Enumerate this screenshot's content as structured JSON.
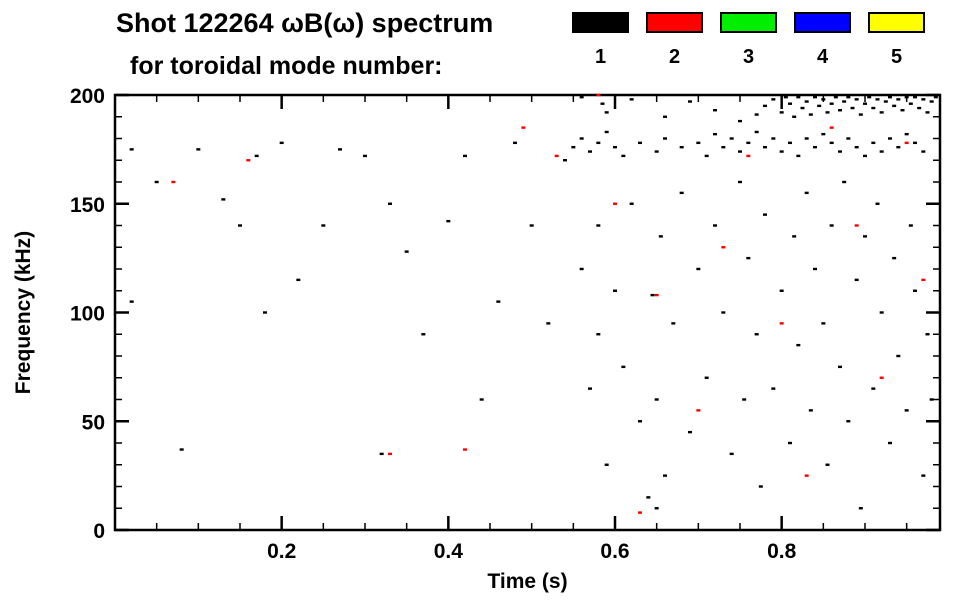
{
  "header": {
    "title_line1": "Shot 122264 ωB(ω) spectrum",
    "title_line2": "for toroidal mode number:"
  },
  "legend": {
    "items": [
      {
        "label": "1",
        "color": "#000000"
      },
      {
        "label": "2",
        "color": "#ff0000"
      },
      {
        "label": "3",
        "color": "#00ee00"
      },
      {
        "label": "4",
        "color": "#0000ff"
      },
      {
        "label": "5",
        "color": "#ffff00"
      }
    ]
  },
  "chart_data": {
    "type": "scatter",
    "title": "Shot 122264 ωB(ω) spectrum for toroidal mode number",
    "xlabel": "Time (s)",
    "ylabel": "Frequency (kHz)",
    "xlim": [
      0,
      0.99
    ],
    "ylim": [
      0,
      200
    ],
    "xticks": [
      0.2,
      0.4,
      0.6,
      0.8
    ],
    "xtick_labels": [
      "0.2",
      "0.4",
      "0.6",
      "0.8"
    ],
    "yticks": [
      0,
      50,
      100,
      150,
      200
    ],
    "ytick_labels": [
      "0",
      "50",
      "100",
      "150",
      "200"
    ],
    "x_minor_step": 0.05,
    "y_minor_step": 10,
    "grid": false,
    "legend_position": "top-right",
    "series": [
      {
        "name": "mode 1",
        "color": "#000000",
        "points": [
          [
            0.02,
            175
          ],
          [
            0.02,
            105
          ],
          [
            0.05,
            160
          ],
          [
            0.08,
            37
          ],
          [
            0.1,
            175
          ],
          [
            0.13,
            152
          ],
          [
            0.15,
            140
          ],
          [
            0.17,
            172
          ],
          [
            0.18,
            100
          ],
          [
            0.2,
            178
          ],
          [
            0.22,
            115
          ],
          [
            0.25,
            140
          ],
          [
            0.27,
            175
          ],
          [
            0.3,
            172
          ],
          [
            0.32,
            35
          ],
          [
            0.33,
            150
          ],
          [
            0.35,
            128
          ],
          [
            0.37,
            90
          ],
          [
            0.4,
            142
          ],
          [
            0.42,
            172
          ],
          [
            0.44,
            60
          ],
          [
            0.46,
            105
          ],
          [
            0.48,
            178
          ],
          [
            0.5,
            140
          ],
          [
            0.52,
            95
          ],
          [
            0.54,
            170
          ],
          [
            0.55,
            176
          ],
          [
            0.56,
            180
          ],
          [
            0.57,
            174
          ],
          [
            0.58,
            178
          ],
          [
            0.585,
            196
          ],
          [
            0.59,
            183
          ],
          [
            0.6,
            176
          ],
          [
            0.61,
            172
          ],
          [
            0.63,
            178
          ],
          [
            0.65,
            174
          ],
          [
            0.66,
            180
          ],
          [
            0.68,
            176
          ],
          [
            0.7,
            178
          ],
          [
            0.71,
            172
          ],
          [
            0.72,
            182
          ],
          [
            0.73,
            176
          ],
          [
            0.74,
            180
          ],
          [
            0.75,
            174
          ],
          [
            0.76,
            178
          ],
          [
            0.77,
            183
          ],
          [
            0.78,
            176
          ],
          [
            0.79,
            180
          ],
          [
            0.8,
            174
          ],
          [
            0.81,
            178
          ],
          [
            0.82,
            172
          ],
          [
            0.83,
            180
          ],
          [
            0.84,
            176
          ],
          [
            0.85,
            182
          ],
          [
            0.86,
            178
          ],
          [
            0.87,
            174
          ],
          [
            0.88,
            180
          ],
          [
            0.89,
            176
          ],
          [
            0.9,
            172
          ],
          [
            0.91,
            178
          ],
          [
            0.92,
            174
          ],
          [
            0.93,
            180
          ],
          [
            0.94,
            176
          ],
          [
            0.95,
            182
          ],
          [
            0.96,
            178
          ],
          [
            0.97,
            174
          ],
          [
            0.56,
            199
          ],
          [
            0.59,
            192
          ],
          [
            0.62,
            198
          ],
          [
            0.66,
            190
          ],
          [
            0.69,
            197
          ],
          [
            0.72,
            193
          ],
          [
            0.75,
            188
          ],
          [
            0.77,
            191
          ],
          [
            0.78,
            195
          ],
          [
            0.79,
            198
          ],
          [
            0.8,
            192
          ],
          [
            0.805,
            199
          ],
          [
            0.81,
            196
          ],
          [
            0.815,
            190
          ],
          [
            0.82,
            199
          ],
          [
            0.825,
            194
          ],
          [
            0.83,
            197
          ],
          [
            0.835,
            191
          ],
          [
            0.84,
            199
          ],
          [
            0.845,
            195
          ],
          [
            0.85,
            198
          ],
          [
            0.855,
            192
          ],
          [
            0.86,
            196
          ],
          [
            0.865,
            199
          ],
          [
            0.87,
            193
          ],
          [
            0.875,
            197
          ],
          [
            0.88,
            199
          ],
          [
            0.885,
            194
          ],
          [
            0.89,
            198
          ],
          [
            0.895,
            191
          ],
          [
            0.9,
            196
          ],
          [
            0.905,
            199
          ],
          [
            0.91,
            194
          ],
          [
            0.915,
            198
          ],
          [
            0.92,
            192
          ],
          [
            0.925,
            197
          ],
          [
            0.93,
            199
          ],
          [
            0.935,
            195
          ],
          [
            0.94,
            198
          ],
          [
            0.945,
            193
          ],
          [
            0.95,
            199
          ],
          [
            0.955,
            196
          ],
          [
            0.96,
            199
          ],
          [
            0.965,
            194
          ],
          [
            0.97,
            198
          ],
          [
            0.975,
            192
          ],
          [
            0.98,
            197
          ],
          [
            0.985,
            199
          ],
          [
            0.56,
            120
          ],
          [
            0.57,
            65
          ],
          [
            0.58,
            140
          ],
          [
            0.58,
            90
          ],
          [
            0.59,
            30
          ],
          [
            0.6,
            110
          ],
          [
            0.61,
            75
          ],
          [
            0.62,
            150
          ],
          [
            0.63,
            50
          ],
          [
            0.64,
            15
          ],
          [
            0.645,
            108
          ],
          [
            0.65,
            10
          ],
          [
            0.65,
            60
          ],
          [
            0.655,
            135
          ],
          [
            0.66,
            25
          ],
          [
            0.67,
            95
          ],
          [
            0.68,
            155
          ],
          [
            0.69,
            45
          ],
          [
            0.7,
            120
          ],
          [
            0.71,
            70
          ],
          [
            0.72,
            140
          ],
          [
            0.73,
            100
          ],
          [
            0.74,
            35
          ],
          [
            0.75,
            160
          ],
          [
            0.755,
            60
          ],
          [
            0.76,
            125
          ],
          [
            0.77,
            90
          ],
          [
            0.775,
            20
          ],
          [
            0.78,
            145
          ],
          [
            0.79,
            65
          ],
          [
            0.8,
            110
          ],
          [
            0.81,
            40
          ],
          [
            0.815,
            135
          ],
          [
            0.82,
            85
          ],
          [
            0.83,
            155
          ],
          [
            0.835,
            55
          ],
          [
            0.84,
            120
          ],
          [
            0.85,
            95
          ],
          [
            0.855,
            30
          ],
          [
            0.86,
            140
          ],
          [
            0.87,
            75
          ],
          [
            0.875,
            160
          ],
          [
            0.88,
            50
          ],
          [
            0.89,
            115
          ],
          [
            0.895,
            10
          ],
          [
            0.9,
            135
          ],
          [
            0.91,
            65
          ],
          [
            0.915,
            150
          ],
          [
            0.92,
            100
          ],
          [
            0.93,
            40
          ],
          [
            0.935,
            125
          ],
          [
            0.94,
            80
          ],
          [
            0.95,
            55
          ],
          [
            0.955,
            140
          ],
          [
            0.96,
            110
          ],
          [
            0.97,
            25
          ],
          [
            0.975,
            90
          ],
          [
            0.98,
            60
          ]
        ]
      },
      {
        "name": "mode 2",
        "color": "#ff0000",
        "points": [
          [
            0.07,
            160
          ],
          [
            0.16,
            170
          ],
          [
            0.33,
            35
          ],
          [
            0.42,
            37
          ],
          [
            0.49,
            185
          ],
          [
            0.53,
            172
          ],
          [
            0.58,
            200
          ],
          [
            0.6,
            150
          ],
          [
            0.63,
            8
          ],
          [
            0.65,
            108
          ],
          [
            0.7,
            55
          ],
          [
            0.73,
            130
          ],
          [
            0.76,
            172
          ],
          [
            0.8,
            95
          ],
          [
            0.83,
            25
          ],
          [
            0.86,
            185
          ],
          [
            0.89,
            140
          ],
          [
            0.92,
            70
          ],
          [
            0.95,
            178
          ],
          [
            0.97,
            115
          ]
        ]
      },
      {
        "name": "mode 3",
        "color": "#00ee00",
        "points": []
      },
      {
        "name": "mode 4",
        "color": "#0000ff",
        "points": []
      },
      {
        "name": "mode 5",
        "color": "#ffff00",
        "points": []
      }
    ]
  }
}
